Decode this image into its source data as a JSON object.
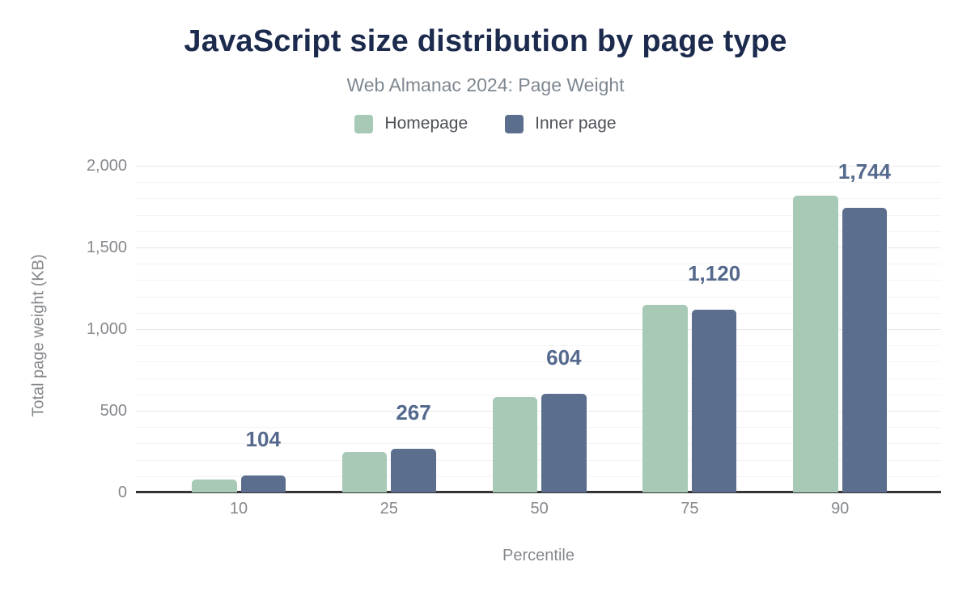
{
  "chart_data": {
    "type": "bar",
    "title": "JavaScript size distribution by page type",
    "subtitle": "Web Almanac 2024: Page Weight",
    "xlabel": "Percentile",
    "ylabel": "Total page weight (KB)",
    "categories": [
      "10",
      "25",
      "50",
      "75",
      "90"
    ],
    "series": [
      {
        "name": "Homepage",
        "color": "#a7c9b5",
        "values": [
          78,
          250,
          585,
          1148,
          1818
        ]
      },
      {
        "name": "Inner page",
        "color": "#5b6e8d",
        "values": [
          104,
          267,
          604,
          1120,
          1744
        ],
        "data_labels": [
          "104",
          "267",
          "604",
          "1,120",
          "1,744"
        ]
      }
    ],
    "ylim": [
      0,
      2000
    ],
    "yticks": [
      {
        "value": 0,
        "label": "0"
      },
      {
        "value": 500,
        "label": "500"
      },
      {
        "value": 1000,
        "label": "1,000"
      },
      {
        "value": 1500,
        "label": "1,500"
      },
      {
        "value": 2000,
        "label": "2,000"
      }
    ],
    "grid": {
      "visible": true,
      "minor_step": 100,
      "major_step": 500
    },
    "legend_position": "top",
    "colors": {
      "title": "#1c2b4d",
      "subtitle": "#7e8791",
      "axis_text": "#85888c",
      "axis_line": "#333333",
      "legend_text": "#4c5158",
      "data_label": "#54698d",
      "background": "#ffffff"
    }
  }
}
